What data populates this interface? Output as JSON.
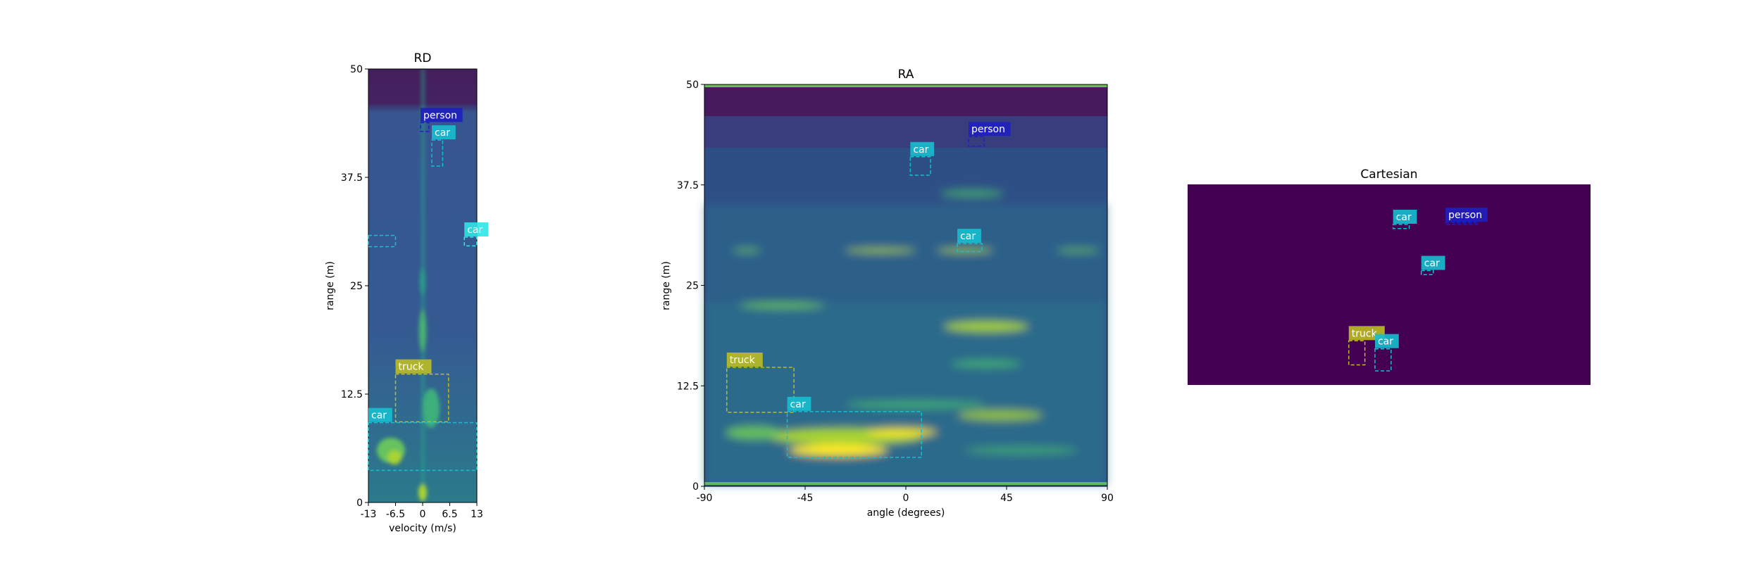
{
  "chart_data": [
    {
      "type": "heatmap",
      "title": "RD",
      "xlabel": "velocity (m/s)",
      "ylabel": "range (m)",
      "xlim": [
        -13,
        13
      ],
      "ylim": [
        0,
        50
      ],
      "xticks": [
        "-13",
        "-6.5",
        "0",
        "6.5",
        "13"
      ],
      "yticks": [
        "0",
        "12.5",
        "25",
        "37.5",
        "50"
      ],
      "boxes": [
        {
          "label": "person",
          "color": "#1f1fbf",
          "x0": -0.5,
          "x1": 1.5,
          "y0": 42.8,
          "y1": 43.8
        },
        {
          "label": "car",
          "color": "#17becf",
          "x0": 2.2,
          "x1": 4.8,
          "y0": 38.8,
          "y1": 41.8
        },
        {
          "label": "car",
          "color": "#2ee6e6",
          "x0": 10.0,
          "x1": 13.0,
          "y0": 29.6,
          "y1": 30.6
        },
        {
          "label": "",
          "color": "#17becf",
          "x0": -13.0,
          "x1": -6.5,
          "y0": 29.5,
          "y1": 30.8
        },
        {
          "label": "truck",
          "color": "#bcbd22",
          "x0": -6.5,
          "x1": 6.2,
          "y0": 9.3,
          "y1": 14.8
        },
        {
          "label": "car",
          "color": "#17becf",
          "x0": -13.0,
          "x1": 13.0,
          "y0": 3.7,
          "y1": 9.2
        }
      ]
    },
    {
      "type": "heatmap",
      "title": "RA",
      "xlabel": "angle (degrees)",
      "ylabel": "range (m)",
      "xlim": [
        -90,
        90
      ],
      "ylim": [
        0,
        50
      ],
      "xticks": [
        "-90",
        "-45",
        "0",
        "45",
        "90"
      ],
      "yticks": [
        "0",
        "12.5",
        "25",
        "37.5",
        "50"
      ],
      "boxes": [
        {
          "label": "person",
          "color": "#1f1fbf",
          "x0": 28,
          "x1": 35,
          "y0": 42.3,
          "y1": 43.5
        },
        {
          "label": "car",
          "color": "#17becf",
          "x0": 2,
          "x1": 11,
          "y0": 38.7,
          "y1": 41.0
        },
        {
          "label": "car",
          "color": "#17becf",
          "x0": 23,
          "x1": 34,
          "y0": 29.2,
          "y1": 30.2
        },
        {
          "label": "truck",
          "color": "#bcbd22",
          "x0": -80,
          "x1": -50,
          "y0": 9.2,
          "y1": 14.8
        },
        {
          "label": "car",
          "color": "#17becf",
          "x0": -53,
          "x1": 7,
          "y0": 3.6,
          "y1": 9.3
        }
      ]
    },
    {
      "type": "heatmap",
      "title": "Cartesian",
      "boxes": [
        {
          "label": "car",
          "color": "#17becf",
          "x0": 0.51,
          "x1": 0.55,
          "y0": 0.78,
          "y1": 0.8
        },
        {
          "label": "person",
          "color": "#1f1fbf",
          "x0": 0.64,
          "x1": 0.72,
          "y0": 0.8,
          "y1": 0.81
        },
        {
          "label": "car",
          "color": "#17becf",
          "x0": 0.58,
          "x1": 0.61,
          "y0": 0.55,
          "y1": 0.57
        },
        {
          "label": "truck",
          "color": "#bcbd22",
          "x0": 0.4,
          "x1": 0.44,
          "y0": 0.1,
          "y1": 0.22
        },
        {
          "label": "car",
          "color": "#17becf",
          "x0": 0.465,
          "x1": 0.505,
          "y0": 0.07,
          "y1": 0.18
        }
      ]
    }
  ]
}
